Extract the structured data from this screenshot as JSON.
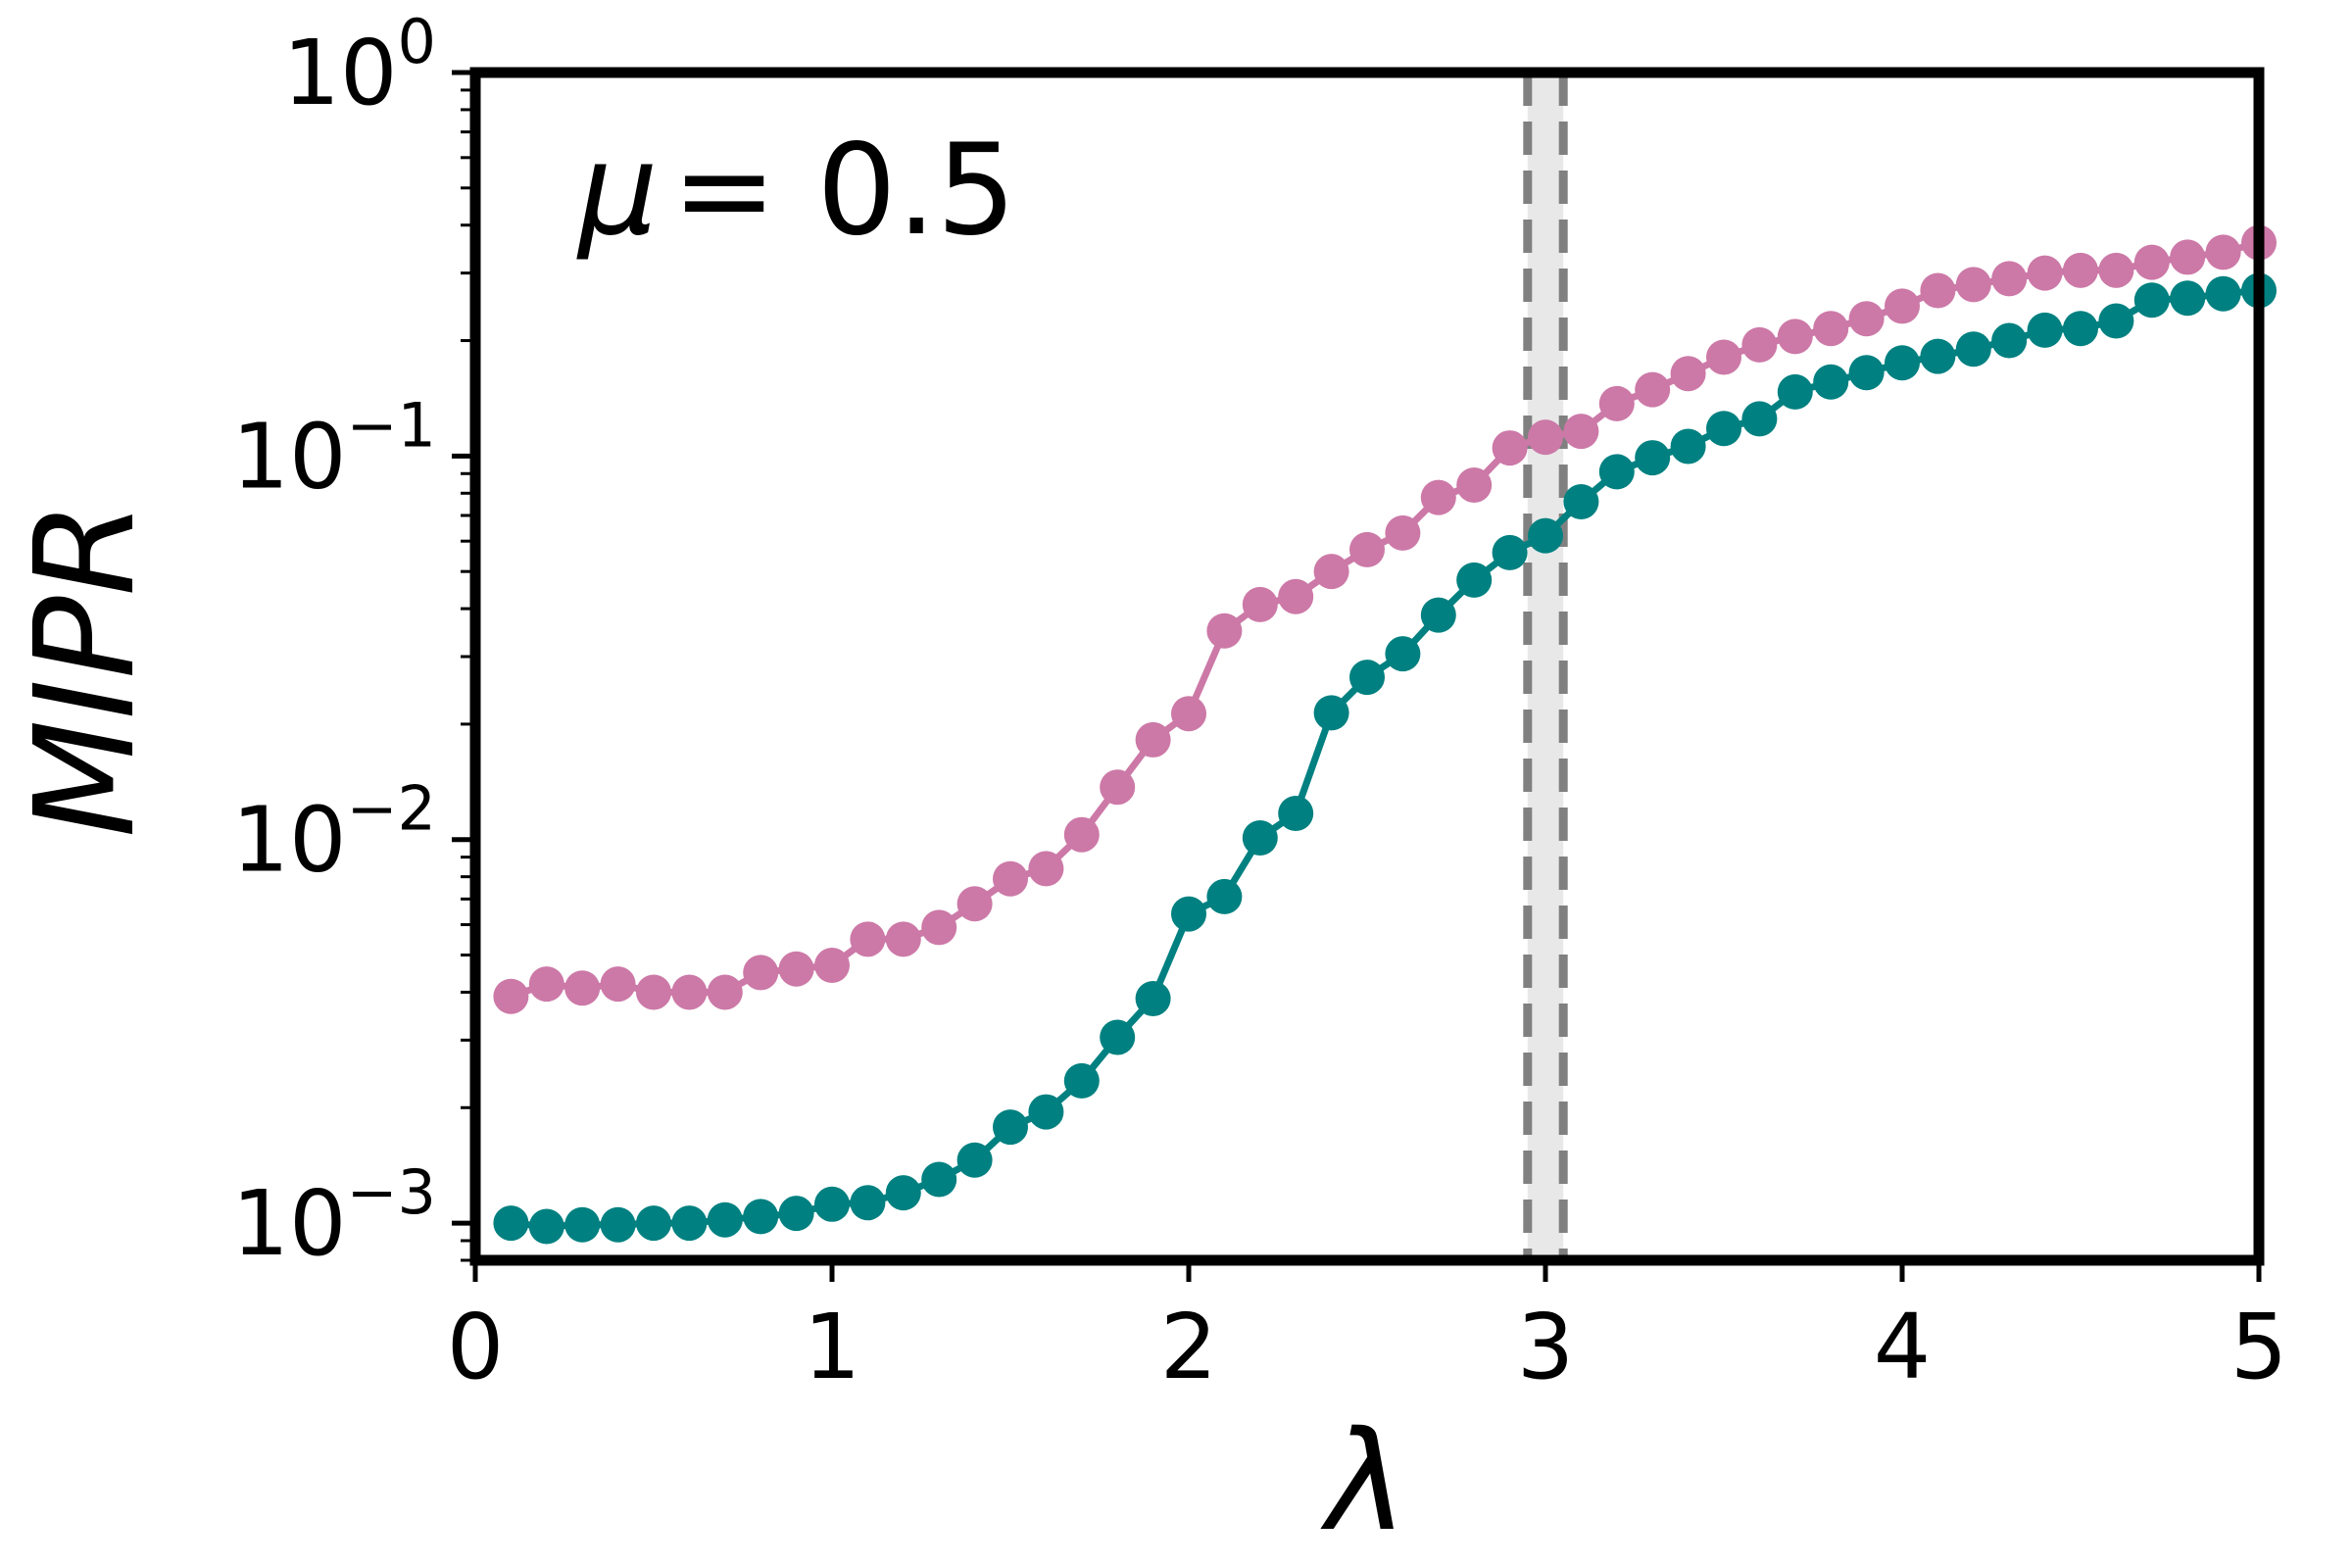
{
  "chart_data": {
    "type": "line",
    "title": "",
    "annotation": {
      "symbol": "μ",
      "text": "= 0.5"
    },
    "xlabel": "λ",
    "ylabel": "MIPR",
    "xlim": [
      0,
      5
    ],
    "ylim": [
      0.0008,
      1
    ],
    "yscale": "log",
    "xticks": [
      {
        "value": 0,
        "label": "0"
      },
      {
        "value": 1,
        "label": "1"
      },
      {
        "value": 2,
        "label": "2"
      },
      {
        "value": 3,
        "label": "3"
      },
      {
        "value": 4,
        "label": "4"
      },
      {
        "value": 5,
        "label": "5"
      }
    ],
    "yticks": [
      {
        "value": 1,
        "base": "10",
        "exp": "0"
      },
      {
        "value": 0.1,
        "base": "10",
        "exp": "−1"
      },
      {
        "value": 0.01,
        "base": "10",
        "exp": "−2"
      },
      {
        "value": 0.001,
        "base": "10",
        "exp": "−3"
      }
    ],
    "grid": false,
    "vlines": [
      {
        "x": 2.95,
        "color": "#808080",
        "style": "dashed"
      },
      {
        "x": 3.05,
        "color": "#808080",
        "style": "dashed"
      }
    ],
    "shaded_band": {
      "x0": 2.95,
      "x1": 3.05,
      "color": "#e8e8e8"
    },
    "x": [
      0.1,
      0.2,
      0.3,
      0.4,
      0.5,
      0.6,
      0.7,
      0.8,
      0.9,
      1.0,
      1.1,
      1.2,
      1.3,
      1.4,
      1.5,
      1.6,
      1.7,
      1.8,
      1.9,
      2.0,
      2.1,
      2.2,
      2.3,
      2.4,
      2.5,
      2.6,
      2.7,
      2.8,
      2.9,
      3.0,
      3.1,
      3.2,
      3.3,
      3.4,
      3.5,
      3.6,
      3.7,
      3.8,
      3.9,
      4.0,
      4.1,
      4.2,
      4.3,
      4.4,
      4.5,
      4.6,
      4.7,
      4.8,
      4.9,
      5.0
    ],
    "series": [
      {
        "color": "#cc79a7",
        "values": [
          0.0039,
          0.0042,
          0.0041,
          0.0042,
          0.004,
          0.004,
          0.004,
          0.0045,
          0.0046,
          0.0047,
          0.0055,
          0.0055,
          0.0059,
          0.0068,
          0.0079,
          0.0084,
          0.0103,
          0.0137,
          0.0182,
          0.0213,
          0.035,
          0.041,
          0.043,
          0.05,
          0.057,
          0.063,
          0.078,
          0.084,
          0.105,
          0.112,
          0.116,
          0.137,
          0.149,
          0.164,
          0.181,
          0.195,
          0.205,
          0.215,
          0.228,
          0.246,
          0.27,
          0.28,
          0.29,
          0.3,
          0.305,
          0.305,
          0.32,
          0.33,
          0.34,
          0.36
        ]
      },
      {
        "color": "#008080",
        "values": [
          0.001,
          0.00098,
          0.00099,
          0.00099,
          0.001,
          0.001,
          0.00102,
          0.00104,
          0.00106,
          0.00112,
          0.00113,
          0.0012,
          0.0013,
          0.00146,
          0.00178,
          0.00195,
          0.00235,
          0.00305,
          0.00385,
          0.0064,
          0.0071,
          0.0101,
          0.0117,
          0.0214,
          0.0265,
          0.0305,
          0.0385,
          0.0475,
          0.056,
          0.062,
          0.076,
          0.091,
          0.099,
          0.106,
          0.118,
          0.125,
          0.147,
          0.156,
          0.165,
          0.175,
          0.182,
          0.19,
          0.2,
          0.213,
          0.215,
          0.225,
          0.255,
          0.258,
          0.265,
          0.27
        ]
      }
    ]
  }
}
